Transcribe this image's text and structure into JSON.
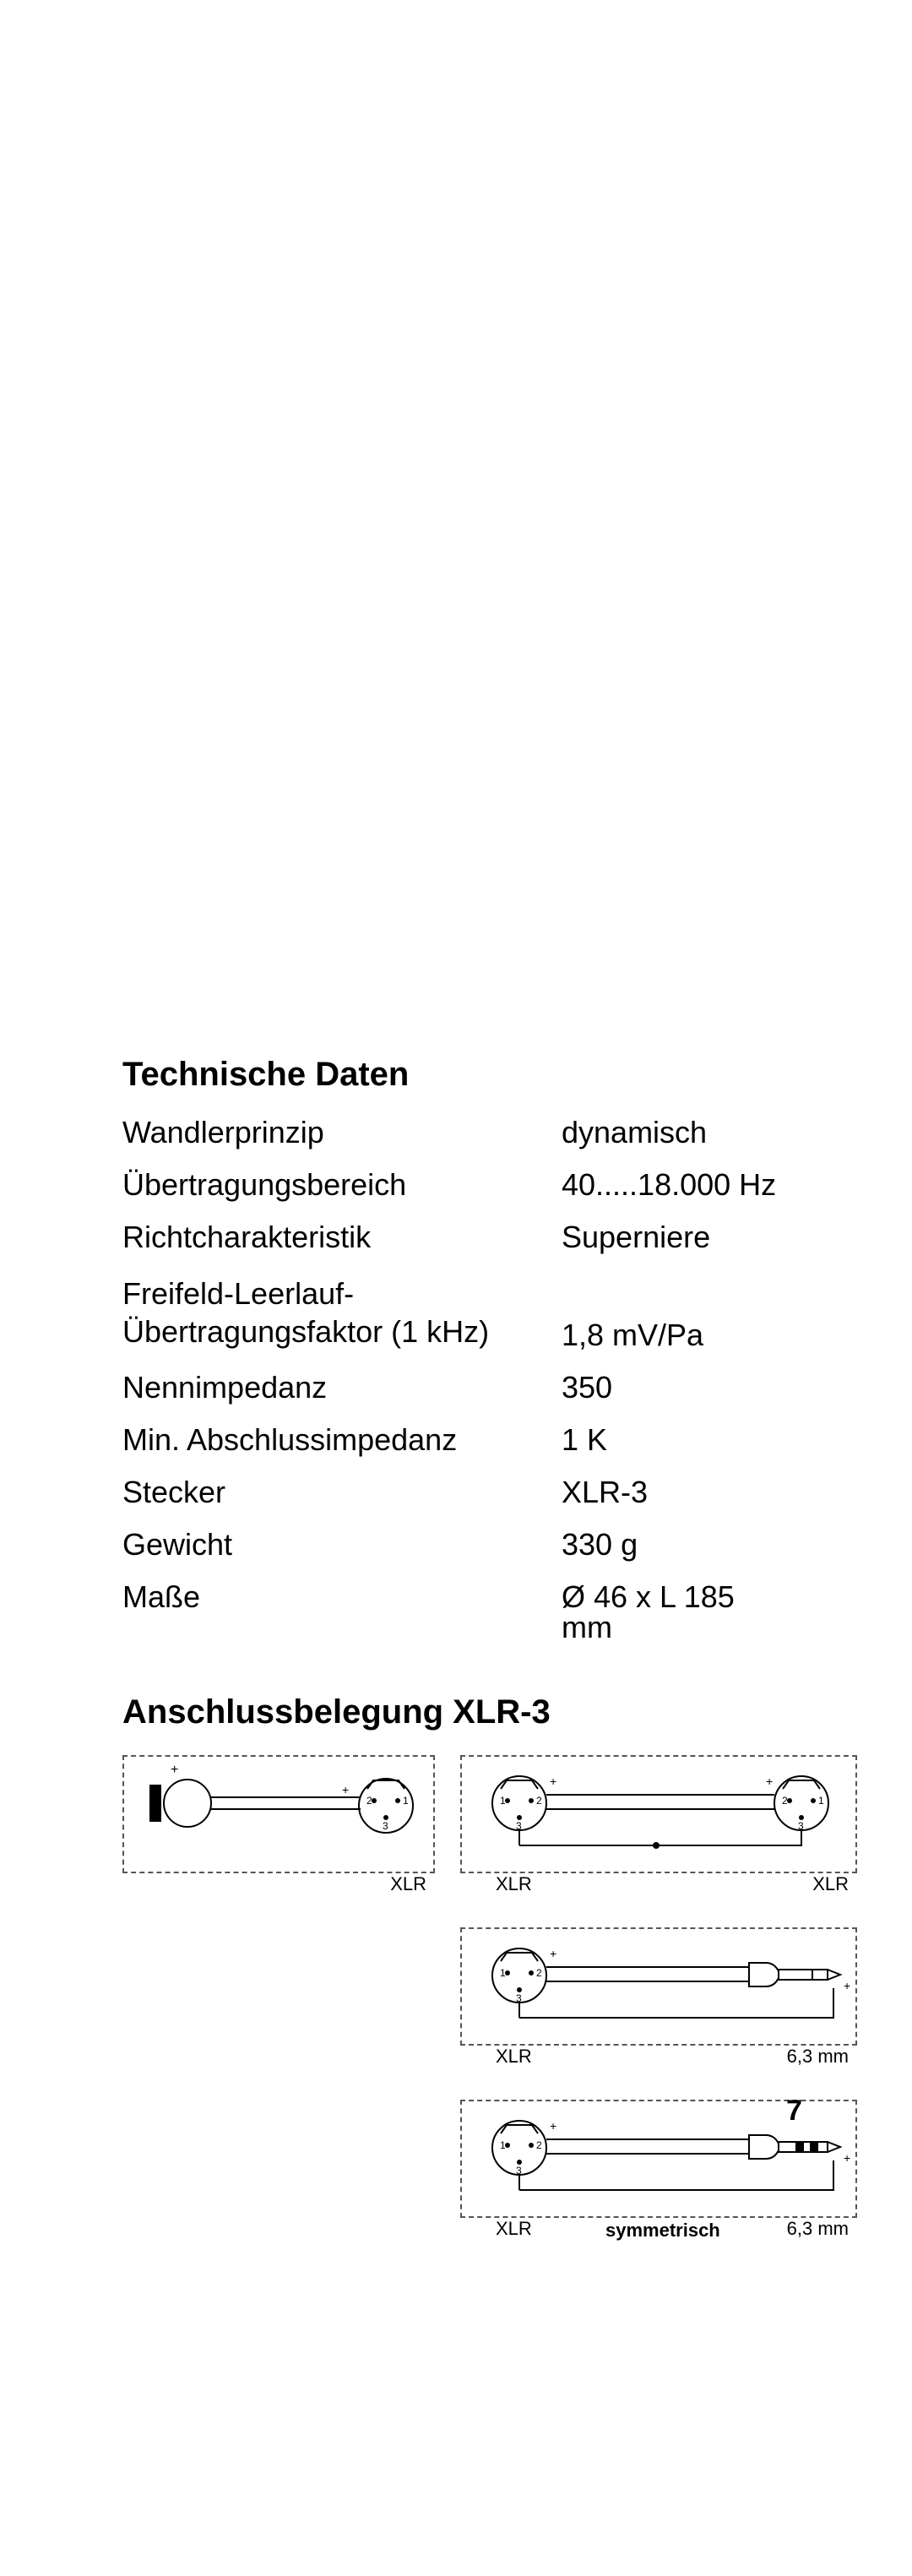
{
  "heading1": "Technische Daten",
  "specs": [
    {
      "label": "Wandlerprinzip",
      "value": "dynamisch"
    },
    {
      "label": "Übertragungsbereich",
      "value": "40.....18.000 Hz"
    },
    {
      "label": "Richtcharakteristik",
      "value": "Superniere"
    },
    {
      "label": "Freifeld-Leerlauf-\nÜbertragungsfaktor (1 kHz)",
      "value": "1,8 mV/Pa"
    },
    {
      "label": "Nennimpedanz",
      "value": "350"
    },
    {
      "label": "Min. Abschlussimpedanz",
      "value": "1 K"
    },
    {
      "label": "Stecker",
      "value": "XLR-3"
    },
    {
      "label": "Gewicht",
      "value": "330 g"
    },
    {
      "label": "Maße",
      "value": "Ø 46 x L 185 mm"
    }
  ],
  "heading2": "Anschlussbelegung XLR-3",
  "diagrams": {
    "d1": {
      "labels": {
        "xlr": "XLR"
      },
      "pins": [
        "1",
        "2",
        "3"
      ],
      "plus": "+"
    },
    "d2": {
      "labels": {
        "left": "XLR",
        "right": "XLR"
      },
      "pins": [
        "1",
        "2",
        "3"
      ],
      "plus": "+"
    },
    "d3": {
      "labels": {
        "left": "XLR",
        "right": "6,3 mm"
      },
      "pins": [
        "1",
        "2",
        "3"
      ],
      "plus": "+"
    },
    "d4": {
      "labels": {
        "left": "XLR",
        "center": "symmetrisch",
        "right": "6,3 mm"
      },
      "pins": [
        "1",
        "2",
        "3"
      ],
      "plus": "+"
    }
  },
  "page_number": "7",
  "style": {
    "page_bg": "#ffffff",
    "text_color": "#000000",
    "border_dash": "#555555",
    "heading_fontsize": 40,
    "body_fontsize": 36,
    "label_fontsize": 22
  }
}
